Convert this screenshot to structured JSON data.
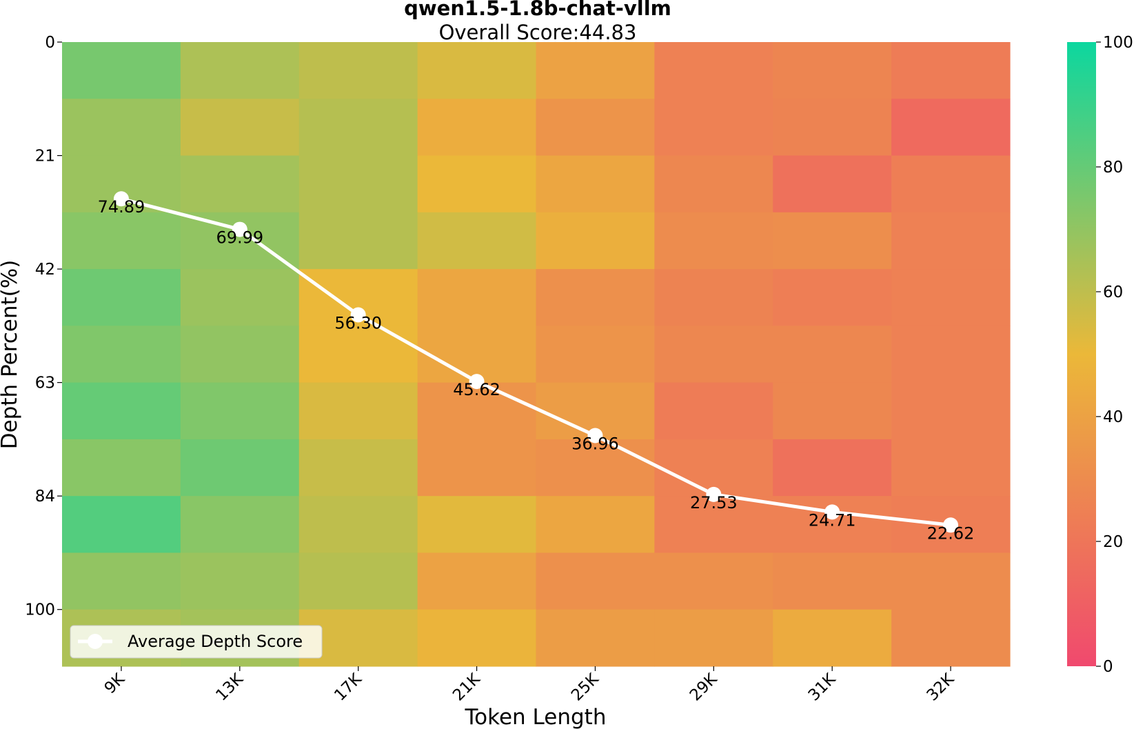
{
  "chart_data": {
    "type": "heatmap",
    "title": "qwen1.5-1.8b-chat-vllm",
    "subtitle": "Overall Score:44.83",
    "xlabel": "Token Length",
    "ylabel": "Depth Percent(%)",
    "x_categories": [
      "9K",
      "13K",
      "17K",
      "21K",
      "25K",
      "29K",
      "31K",
      "32K"
    ],
    "y_tick_labels": [
      "0",
      "21",
      "42",
      "63",
      "84",
      "100"
    ],
    "y_tick_rows": [
      0,
      2,
      4,
      6,
      8,
      10
    ],
    "rows": 11,
    "value_range": [
      0,
      100
    ],
    "colorbar_ticks": [
      0,
      20,
      40,
      60,
      80,
      100
    ],
    "colormap": [
      "#F0496E",
      "#EBB839",
      "#0CD79F"
    ],
    "scores": [
      [
        76,
        64,
        60,
        54,
        40,
        25,
        27,
        23
      ],
      [
        68,
        58,
        62,
        45,
        34,
        25,
        26,
        15
      ],
      [
        68,
        66,
        62,
        50,
        42,
        28,
        18,
        24
      ],
      [
        72,
        70,
        62,
        56,
        46,
        30,
        31,
        25
      ],
      [
        78,
        68,
        50,
        42,
        32,
        26,
        24,
        25
      ],
      [
        74,
        70,
        50,
        42,
        34,
        28,
        28,
        25
      ],
      [
        80,
        74,
        54,
        34,
        38,
        23,
        28,
        25
      ],
      [
        72,
        78,
        58,
        34,
        32,
        25,
        18,
        25
      ],
      [
        84,
        72,
        60,
        52,
        42,
        25,
        25,
        24
      ],
      [
        70,
        68,
        62,
        40,
        32,
        32,
        30,
        30
      ],
      [
        64,
        66,
        54,
        48,
        38,
        38,
        44,
        30
      ]
    ],
    "line_series": {
      "name": "Average Depth Score",
      "values": [
        74.89,
        69.99,
        56.3,
        45.62,
        36.96,
        27.53,
        24.71,
        22.62
      ],
      "labels": [
        "74.89",
        "69.99",
        "56.30",
        "45.62",
        "36.96",
        "27.53",
        "24.71",
        "22.62"
      ],
      "color": "#FFFFFF",
      "y_axis_range": [
        0,
        100
      ]
    },
    "legend": {
      "label": "Average Depth Score",
      "position": "lower-left"
    }
  }
}
